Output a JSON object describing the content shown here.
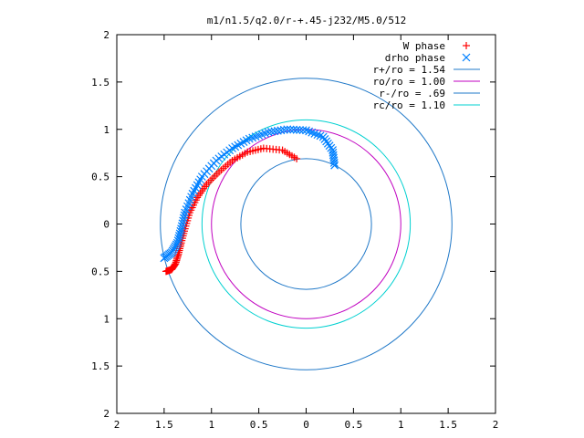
{
  "chart_data": {
    "type": "scatter",
    "title": "m1/n1.5/q2.0/r-+.45-j232/M5.0/512",
    "xlabel": "",
    "ylabel": "",
    "xlim": [
      2,
      -2
    ],
    "ylim": [
      -2,
      2
    ],
    "x_ticks": [
      "2",
      "1.5",
      "1",
      "0.5",
      "0",
      "0.5",
      "1",
      "1.5",
      "2"
    ],
    "y_ticks": [
      "2",
      "1.5",
      "1",
      "0.5",
      "0",
      "0.5",
      "1",
      "1.5",
      "2"
    ],
    "legend_position": "top-right",
    "grid": false,
    "legend": [
      {
        "label": "W phase",
        "color": "#ff0000",
        "marker": "+"
      },
      {
        "label": "drho phase",
        "color": "#0080ff",
        "marker": "x"
      },
      {
        "label": "r+/ro = 1.54",
        "color": "#1f78c8",
        "marker": "line"
      },
      {
        "label": "ro/ro = 1.00",
        "color": "#c000c0",
        "marker": "line"
      },
      {
        "label": "r-/ro = .69",
        "color": "#1f78c8",
        "marker": "line"
      },
      {
        "label": "rc/ro = 1.10",
        "color": "#00d0d0",
        "marker": "line"
      }
    ],
    "circles": [
      {
        "name": "r+/ro",
        "radius": 1.54,
        "color": "#1f78c8"
      },
      {
        "name": "ro/ro",
        "radius": 1.0,
        "color": "#c000c0"
      },
      {
        "name": "r-/ro",
        "radius": 0.69,
        "color": "#1f78c8"
      },
      {
        "name": "rc/ro",
        "radius": 1.1,
        "color": "#00d0d0"
      }
    ],
    "series": [
      {
        "name": "W phase",
        "color": "#ff0000",
        "marker": "+",
        "points": [
          [
            0.1,
            0.69
          ],
          [
            0.25,
            0.78
          ],
          [
            0.45,
            0.8
          ],
          [
            0.62,
            0.76
          ],
          [
            0.78,
            0.67
          ],
          [
            0.92,
            0.55
          ],
          [
            1.05,
            0.42
          ],
          [
            1.15,
            0.28
          ],
          [
            1.23,
            0.12
          ],
          [
            1.28,
            -0.05
          ],
          [
            1.32,
            -0.2
          ],
          [
            1.35,
            -0.32
          ],
          [
            1.38,
            -0.42
          ],
          [
            1.42,
            -0.48
          ],
          [
            1.48,
            -0.5
          ]
        ]
      },
      {
        "name": "drho phase",
        "color": "#0080ff",
        "marker": "x",
        "points": [
          [
            -0.3,
            0.62
          ],
          [
            -0.28,
            0.78
          ],
          [
            -0.18,
            0.92
          ],
          [
            0.0,
            0.99
          ],
          [
            0.2,
            1.0
          ],
          [
            0.4,
            0.97
          ],
          [
            0.6,
            0.9
          ],
          [
            0.78,
            0.8
          ],
          [
            0.95,
            0.67
          ],
          [
            1.1,
            0.5
          ],
          [
            1.2,
            0.32
          ],
          [
            1.28,
            0.12
          ],
          [
            1.32,
            -0.05
          ],
          [
            1.36,
            -0.2
          ],
          [
            1.42,
            -0.3
          ],
          [
            1.5,
            -0.36
          ]
        ]
      }
    ]
  }
}
